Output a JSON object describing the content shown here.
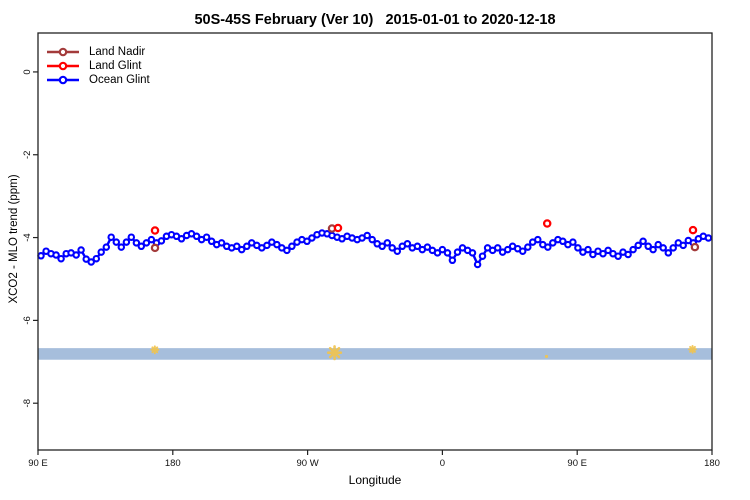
{
  "title": "50S-45S February (Ver 10)   2015-01-01 to 2020-12-18",
  "chart_data": {
    "type": "line",
    "title": "50S-45S February (Ver 10)   2015-01-01 to 2020-12-18",
    "xlabel": "Longitude",
    "ylabel": "XCO2 - MLO trend (ppm)",
    "xlim": [
      90,
      540
    ],
    "ylim": [
      -9.13,
      0.94
    ],
    "grid": false,
    "legend_position": "top-left-inside",
    "x_ticks": [
      {
        "value": 90,
        "label": "90 E"
      },
      {
        "value": 180,
        "label": "180"
      },
      {
        "value": 270,
        "label": "90 W"
      },
      {
        "value": 360,
        "label": "0"
      },
      {
        "value": 450,
        "label": "90 E"
      },
      {
        "value": 540,
        "label": "180"
      }
    ],
    "y_ticks": [
      {
        "value": 0,
        "label": "0"
      },
      {
        "value": -2,
        "label": "-2"
      },
      {
        "value": -4,
        "label": "-4"
      },
      {
        "value": -6,
        "label": "-6"
      },
      {
        "value": -8,
        "label": "-8"
      }
    ],
    "band": {
      "y_from": -6.67,
      "y_to": -6.95,
      "color": "#A6BEDC"
    },
    "flag_color": "#F2C44D",
    "flags": [
      {
        "lon": 168.0,
        "val": -6.71,
        "kind": "asterisk-small"
      },
      {
        "lon": 288.0,
        "val": -6.78,
        "kind": "asterisk-large"
      },
      {
        "lon": 429.5,
        "val": -6.87,
        "kind": "dot"
      },
      {
        "lon": 527.0,
        "val": -6.7,
        "kind": "asterisk-small"
      }
    ],
    "series": [
      {
        "name": "Land Nadir",
        "color": "#A33B3B",
        "marker": "open-circle",
        "points": [
          [
            168.1,
            -4.25
          ],
          [
            286.3,
            -3.78
          ],
          [
            528.6,
            -4.23
          ]
        ]
      },
      {
        "name": "Land Glint",
        "color": "#FF0000",
        "marker": "open-circle",
        "points": [
          [
            168.1,
            -3.83
          ],
          [
            290.3,
            -3.77
          ],
          [
            430.0,
            -3.66
          ],
          [
            527.3,
            -3.82
          ]
        ]
      },
      {
        "name": "Ocean Glint",
        "color": "#0000FF",
        "marker": "open-circle",
        "connected": true,
        "points": [
          [
            92.0,
            -4.44
          ],
          [
            95.4,
            -4.33
          ],
          [
            98.7,
            -4.39
          ],
          [
            102.1,
            -4.42
          ],
          [
            105.4,
            -4.51
          ],
          [
            108.8,
            -4.39
          ],
          [
            112.1,
            -4.37
          ],
          [
            115.5,
            -4.42
          ],
          [
            118.8,
            -4.3
          ],
          [
            122.2,
            -4.52
          ],
          [
            125.5,
            -4.59
          ],
          [
            128.9,
            -4.51
          ],
          [
            132.2,
            -4.35
          ],
          [
            135.6,
            -4.23
          ],
          [
            138.9,
            -3.99
          ],
          [
            142.3,
            -4.11
          ],
          [
            145.6,
            -4.23
          ],
          [
            149.0,
            -4.11
          ],
          [
            152.3,
            -3.99
          ],
          [
            155.7,
            -4.13
          ],
          [
            159.0,
            -4.21
          ],
          [
            162.4,
            -4.13
          ],
          [
            165.7,
            -4.05
          ],
          [
            169.1,
            -4.13
          ],
          [
            172.4,
            -4.08
          ],
          [
            175.8,
            -3.97
          ],
          [
            179.1,
            -3.93
          ],
          [
            182.5,
            -3.97
          ],
          [
            185.8,
            -4.03
          ],
          [
            189.2,
            -3.95
          ],
          [
            192.5,
            -3.91
          ],
          [
            195.9,
            -3.97
          ],
          [
            199.2,
            -4.05
          ],
          [
            202.6,
            -3.99
          ],
          [
            205.9,
            -4.09
          ],
          [
            209.3,
            -4.17
          ],
          [
            212.6,
            -4.13
          ],
          [
            216.0,
            -4.21
          ],
          [
            219.3,
            -4.25
          ],
          [
            222.7,
            -4.21
          ],
          [
            226.0,
            -4.29
          ],
          [
            229.4,
            -4.21
          ],
          [
            232.7,
            -4.13
          ],
          [
            236.1,
            -4.19
          ],
          [
            239.4,
            -4.25
          ],
          [
            242.8,
            -4.19
          ],
          [
            246.1,
            -4.11
          ],
          [
            249.5,
            -4.17
          ],
          [
            252.8,
            -4.25
          ],
          [
            256.2,
            -4.31
          ],
          [
            259.5,
            -4.21
          ],
          [
            262.9,
            -4.11
          ],
          [
            266.2,
            -4.05
          ],
          [
            269.6,
            -4.09
          ],
          [
            272.9,
            -4.01
          ],
          [
            276.3,
            -3.93
          ],
          [
            279.6,
            -3.89
          ],
          [
            283.0,
            -3.91
          ],
          [
            286.3,
            -3.95
          ],
          [
            289.7,
            -3.99
          ],
          [
            293.0,
            -4.03
          ],
          [
            296.4,
            -3.97
          ],
          [
            299.7,
            -4.01
          ],
          [
            303.1,
            -4.05
          ],
          [
            306.4,
            -4.01
          ],
          [
            309.8,
            -3.95
          ],
          [
            313.1,
            -4.05
          ],
          [
            316.5,
            -4.15
          ],
          [
            319.8,
            -4.21
          ],
          [
            323.2,
            -4.13
          ],
          [
            326.5,
            -4.25
          ],
          [
            329.9,
            -4.33
          ],
          [
            333.2,
            -4.21
          ],
          [
            336.6,
            -4.15
          ],
          [
            339.9,
            -4.25
          ],
          [
            343.3,
            -4.21
          ],
          [
            346.6,
            -4.29
          ],
          [
            350.0,
            -4.23
          ],
          [
            353.3,
            -4.31
          ],
          [
            356.7,
            -4.37
          ],
          [
            360.0,
            -4.29
          ],
          [
            363.4,
            -4.37
          ],
          [
            366.7,
            -4.55
          ],
          [
            370.1,
            -4.35
          ],
          [
            373.4,
            -4.25
          ],
          [
            376.8,
            -4.31
          ],
          [
            380.1,
            -4.37
          ],
          [
            383.5,
            -4.65
          ],
          [
            386.8,
            -4.45
          ],
          [
            390.2,
            -4.25
          ],
          [
            393.5,
            -4.31
          ],
          [
            396.9,
            -4.25
          ],
          [
            400.2,
            -4.35
          ],
          [
            403.6,
            -4.29
          ],
          [
            406.9,
            -4.21
          ],
          [
            410.3,
            -4.27
          ],
          [
            413.6,
            -4.33
          ],
          [
            417.0,
            -4.23
          ],
          [
            420.3,
            -4.11
          ],
          [
            423.7,
            -4.05
          ],
          [
            427.0,
            -4.17
          ],
          [
            430.4,
            -4.23
          ],
          [
            433.7,
            -4.13
          ],
          [
            437.1,
            -4.05
          ],
          [
            440.4,
            -4.09
          ],
          [
            443.8,
            -4.17
          ],
          [
            447.1,
            -4.11
          ],
          [
            450.5,
            -4.25
          ],
          [
            453.8,
            -4.35
          ],
          [
            457.2,
            -4.29
          ],
          [
            460.5,
            -4.41
          ],
          [
            463.9,
            -4.33
          ],
          [
            467.2,
            -4.39
          ],
          [
            470.6,
            -4.31
          ],
          [
            473.9,
            -4.39
          ],
          [
            477.3,
            -4.45
          ],
          [
            480.6,
            -4.35
          ],
          [
            484.0,
            -4.41
          ],
          [
            487.3,
            -4.29
          ],
          [
            490.7,
            -4.19
          ],
          [
            494.0,
            -4.09
          ],
          [
            497.4,
            -4.21
          ],
          [
            500.7,
            -4.29
          ],
          [
            504.1,
            -4.17
          ],
          [
            507.4,
            -4.25
          ],
          [
            510.8,
            -4.37
          ],
          [
            514.1,
            -4.25
          ],
          [
            517.5,
            -4.13
          ],
          [
            520.8,
            -4.19
          ],
          [
            524.2,
            -4.07
          ],
          [
            527.5,
            -4.13
          ],
          [
            530.9,
            -4.03
          ],
          [
            534.2,
            -3.97
          ],
          [
            537.6,
            -4.01
          ]
        ]
      }
    ]
  }
}
